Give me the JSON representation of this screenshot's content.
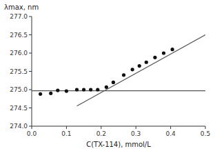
{
  "chart_data": {
    "type": "scatter",
    "xlabel": "C(TX-114), mmol/L",
    "ylabel": "λmax, nm",
    "xlim": [
      0,
      0.5
    ],
    "ylim": [
      274.0,
      277.0
    ],
    "xticks": [
      {
        "value": 0,
        "label": "0.0"
      },
      0.1,
      0.2,
      0.3,
      0.4,
      0.5
    ],
    "yticks": [
      {
        "value": 274.0,
        "label": "274.0"
      },
      274.5,
      {
        "value": 275.0,
        "label": "275.0"
      },
      275.5,
      {
        "value": 276.0,
        "label": "276.0"
      },
      276.5,
      {
        "value": 277.0,
        "label": "277.0"
      }
    ],
    "grid": false,
    "series": [
      {
        "type": "scatter",
        "color": "#111111",
        "x": [
          0.025,
          0.055,
          0.075,
          0.1,
          0.13,
          0.15,
          0.17,
          0.19,
          0.215,
          0.235,
          0.265,
          0.29,
          0.31,
          0.33,
          0.355,
          0.38,
          0.405
        ],
        "values": [
          274.88,
          274.9,
          274.98,
          274.96,
          275.0,
          275.0,
          275.0,
          275.0,
          275.07,
          275.2,
          275.4,
          275.55,
          275.65,
          275.75,
          275.88,
          276.0,
          276.1
        ]
      },
      {
        "type": "line",
        "color": "#555555",
        "x": [
          0.0,
          0.5
        ],
        "values": [
          274.97,
          274.97
        ]
      },
      {
        "type": "line",
        "color": "#555555",
        "x": [
          0.13,
          0.5
        ],
        "values": [
          274.55,
          276.5
        ]
      }
    ]
  }
}
